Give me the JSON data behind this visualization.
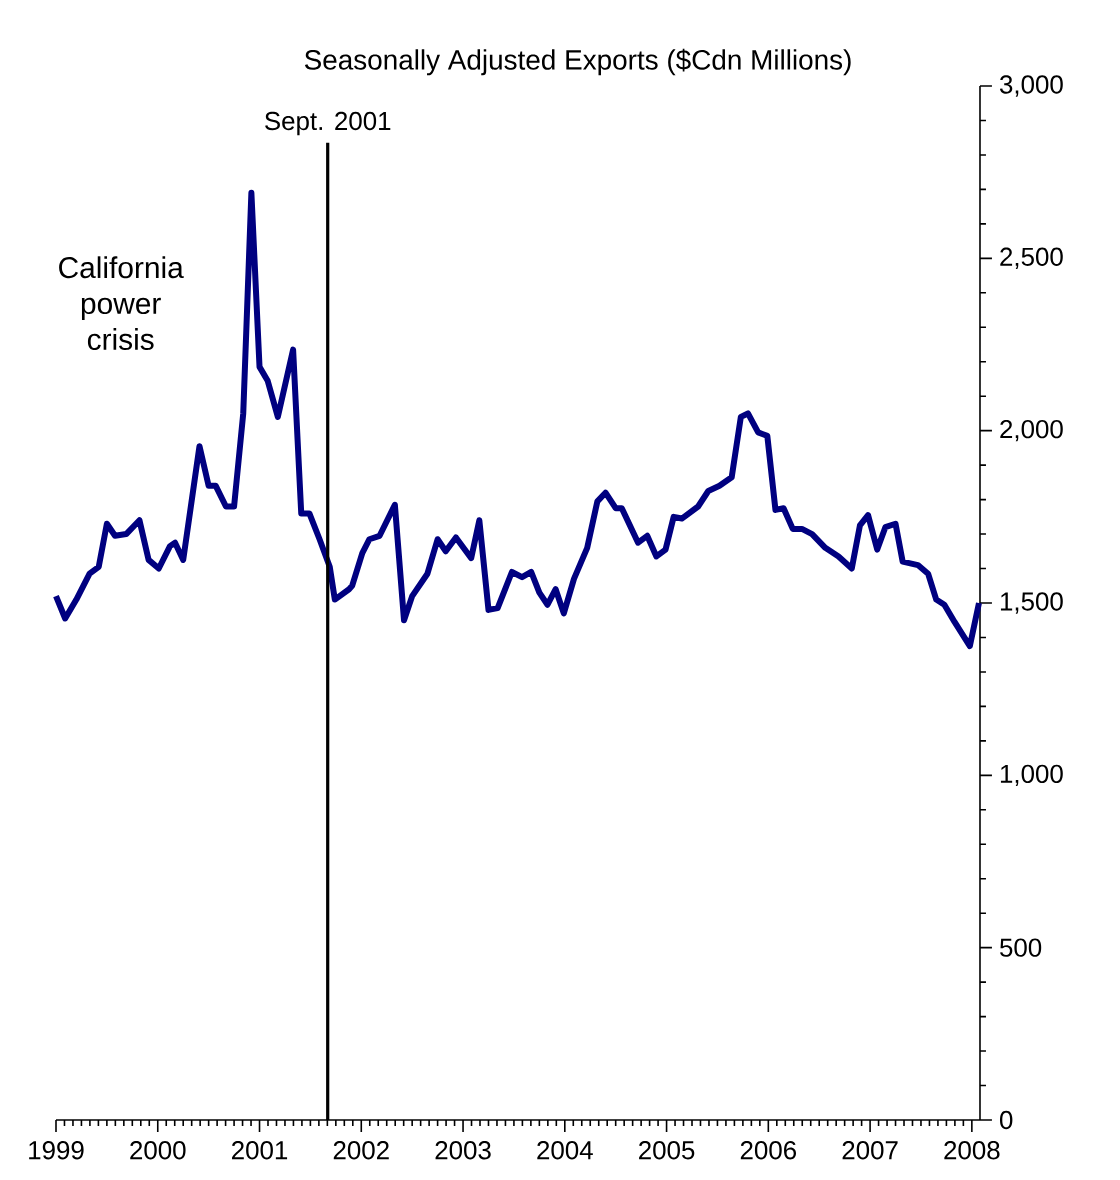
{
  "chart_data": {
    "type": "line",
    "title": "Seasonally Adjusted Exports ($Cdn Millions)",
    "annotations": [
      "California power crisis"
    ],
    "x": [
      1999.0,
      1999.09,
      1999.2,
      1999.33,
      1999.42,
      1999.5,
      1999.58,
      1999.69,
      1999.82,
      1999.91,
      2000.01,
      2000.12,
      2000.17,
      2000.25,
      2000.41,
      2000.5,
      2000.57,
      2000.67,
      2000.75,
      2000.84,
      2000.92,
      2001.0,
      2001.08,
      2001.18,
      2001.33,
      2001.41,
      2001.49,
      2001.59,
      2001.69,
      2001.74,
      2001.88,
      2001.91,
      2002.01,
      2002.08,
      2002.18,
      2002.33,
      2002.42,
      2002.5,
      2002.65,
      2002.75,
      2002.83,
      2002.93,
      2003.08,
      2003.16,
      2003.25,
      2003.34,
      2003.48,
      2003.58,
      2003.67,
      2003.75,
      2003.83,
      2003.91,
      2003.99,
      2004.09,
      2004.22,
      2004.32,
      2004.4,
      2004.5,
      2004.56,
      2004.72,
      2004.81,
      2004.9,
      2004.99,
      2005.07,
      2005.15,
      2005.31,
      2005.41,
      2005.52,
      2005.64,
      2005.73,
      2005.8,
      2005.9,
      2005.99,
      2006.07,
      2006.15,
      2006.24,
      2006.33,
      2006.43,
      2006.56,
      2006.69,
      2006.82,
      2006.9,
      2006.98,
      2007.07,
      2007.15,
      2007.25,
      2007.32,
      2007.47,
      2007.57,
      2007.65,
      2007.73,
      2007.83,
      2007.98,
      2008.07
    ],
    "series": [
      {
        "color": "#000080",
        "values": [
          1520,
          1455,
          1510,
          1585,
          1605,
          1730,
          1695,
          1700,
          1740,
          1625,
          1600,
          1665,
          1675,
          1625,
          1955,
          1840,
          1840,
          1780,
          1780,
          2050,
          2690,
          2185,
          2145,
          2040,
          2235,
          1760,
          1760,
          1685,
          1605,
          1510,
          1540,
          1550,
          1645,
          1685,
          1695,
          1785,
          1450,
          1520,
          1585,
          1685,
          1650,
          1690,
          1630,
          1740,
          1480,
          1485,
          1590,
          1575,
          1590,
          1530,
          1495,
          1540,
          1470,
          1570,
          1660,
          1795,
          1820,
          1775,
          1775,
          1675,
          1695,
          1635,
          1655,
          1750,
          1745,
          1780,
          1825,
          1840,
          1865,
          2040,
          2050,
          1995,
          1985,
          1770,
          1775,
          1715,
          1715,
          1700,
          1660,
          1635,
          1600,
          1725,
          1755,
          1655,
          1720,
          1730,
          1620,
          1610,
          1585,
          1510,
          1495,
          1445,
          1375,
          1500
        ]
      }
    ],
    "xlim": [
      1999,
      2008.08
    ],
    "xticks": [
      1999,
      2000,
      2001,
      2002,
      2003,
      2004,
      2005,
      2006,
      2007,
      2008
    ],
    "ylim": [
      0,
      3000
    ],
    "yticks": [
      0,
      {
        "value": 500,
        "label": "500"
      },
      {
        "value": 1000,
        "label": "1,000"
      },
      {
        "value": 1500,
        "label": "1,500"
      },
      {
        "value": 2000,
        "label": "2,000"
      },
      {
        "value": 2500,
        "label": "2,500"
      },
      {
        "value": 3000,
        "label": "3,000"
      }
    ],
    "ref_lines": [
      {
        "axis": "x",
        "value": 2001.67,
        "label": "Sept. 2001",
        "color": "#000000"
      }
    ],
    "marker": "none",
    "line_style": "solid"
  }
}
